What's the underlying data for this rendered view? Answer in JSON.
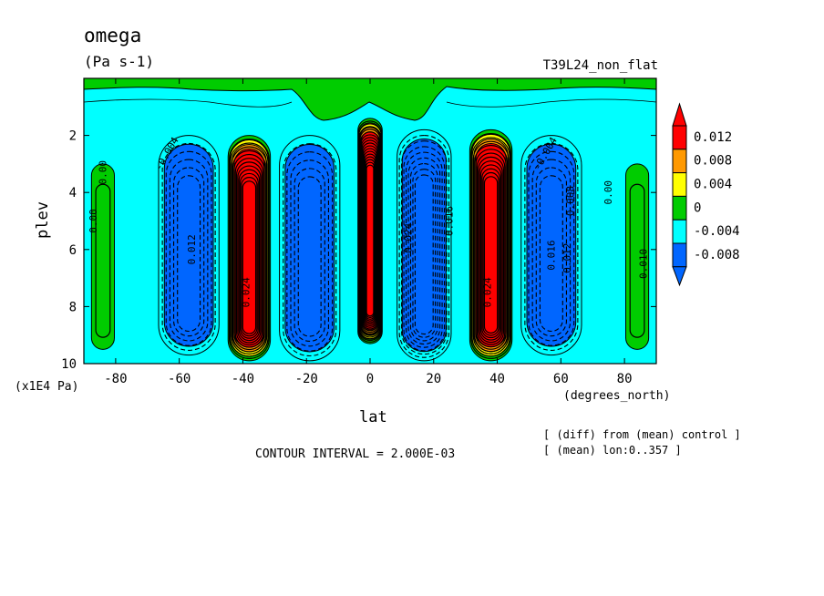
{
  "chart_data": {
    "type": "heatmap",
    "title": "omega",
    "units": "(Pa s-1)",
    "experiment": "T39L24_non_flat",
    "xlabel": "lat",
    "xunits": "(degrees_north)",
    "ylabel": "plev",
    "yunits": "(x1E4 Pa)",
    "xlim": [
      -90,
      90
    ],
    "ylim": [
      10,
      0
    ],
    "x_ticks": [
      "-80",
      "-60",
      "-40",
      "-20",
      "0",
      "20",
      "40",
      "60",
      "80"
    ],
    "y_ticks": [
      "2",
      "4",
      "6",
      "8",
      "10"
    ],
    "contour_interval_text": "CONTOUR INTERVAL = 2.000E-03",
    "notes": [
      "[ (diff) from (mean) control ]",
      "[ (mean) lon:0..357 ]"
    ],
    "colorbar": {
      "labels": [
        "0.012",
        "0.008",
        "0.004",
        "0",
        "-0.004",
        "-0.008"
      ],
      "colors": [
        "#ff0000",
        "#ff9900",
        "#ffff00",
        "#00cc00",
        "#00ffff",
        "#0066ff",
        "#ff0000",
        "#0066ff"
      ]
    },
    "cells": [
      {
        "lat": -84,
        "p_top": 3.0,
        "p_bot": 9.5,
        "value": 0.001
      },
      {
        "lat": -57,
        "p_top": 2.0,
        "p_bot": 9.7,
        "value": -0.01
      },
      {
        "lat": -38,
        "p_top": 2.0,
        "p_bot": 9.9,
        "value": 0.024
      },
      {
        "lat": -19,
        "p_top": 2.0,
        "p_bot": 9.9,
        "value": -0.01
      },
      {
        "lat": 0,
        "p_top": 1.4,
        "p_bot": 9.3,
        "value": 0.034
      },
      {
        "lat": 17,
        "p_top": 1.8,
        "p_bot": 9.9,
        "value": -0.016
      },
      {
        "lat": 38,
        "p_top": 1.8,
        "p_bot": 9.9,
        "value": 0.024
      },
      {
        "lat": 57,
        "p_top": 2.0,
        "p_bot": 9.7,
        "value": -0.01
      },
      {
        "lat": 84,
        "p_top": 3.0,
        "p_bot": 9.5,
        "value": 0.001
      }
    ],
    "contour_labels": [
      {
        "text": "-0.004",
        "lat": -63,
        "p": 2.7,
        "rot": -60
      },
      {
        "text": "0.00",
        "lat": -83,
        "p": 3.3,
        "rot": -90
      },
      {
        "text": "0.00",
        "lat": -86,
        "p": 5.0,
        "rot": -90
      },
      {
        "text": "0.012",
        "lat": -55,
        "p": 6.0,
        "rot": -90
      },
      {
        "text": "0.024",
        "lat": -38,
        "p": 7.5,
        "rot": -90
      },
      {
        "text": "0.024",
        "lat": 38,
        "p": 7.5,
        "rot": -90
      },
      {
        "text": "0.024",
        "lat": 13,
        "p": 5.6,
        "rot": -90
      },
      {
        "text": "0.016",
        "lat": 26,
        "p": 5.0,
        "rot": -90
      },
      {
        "text": "0.016",
        "lat": 58,
        "p": 6.2,
        "rot": -90
      },
      {
        "text": "0.012",
        "lat": 63,
        "p": 6.3,
        "rot": -90
      },
      {
        "text": "0.008",
        "lat": 64,
        "p": 4.3,
        "rot": -90
      },
      {
        "text": "-0.004",
        "lat": 56,
        "p": 2.7,
        "rot": -60
      },
      {
        "text": "0.00",
        "lat": 76,
        "p": 4.0,
        "rot": -90
      },
      {
        "text": "0.010",
        "lat": 87,
        "p": 6.5,
        "rot": -90
      }
    ]
  }
}
